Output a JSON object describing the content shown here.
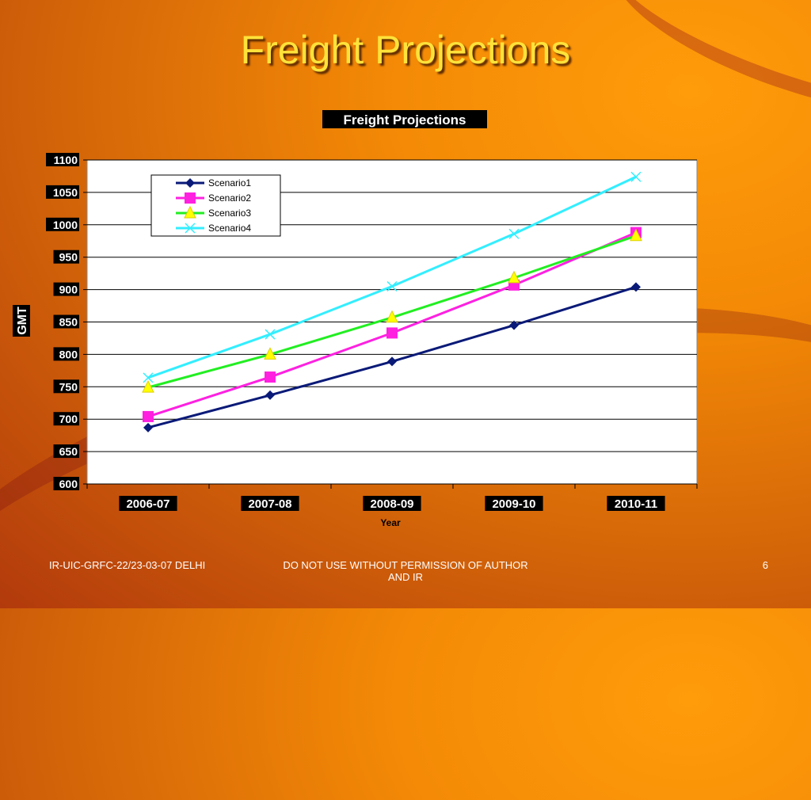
{
  "slide": {
    "title": "Freight Projections",
    "footer_left": "IR-UIC-GRFC-22/23-03-07 DELHI",
    "footer_center": "DO NOT USE WITHOUT PERMISSION OF AUTHOR AND IR",
    "page_number": "6"
  },
  "colors": {
    "title": "#ffe23a",
    "background_accent": "#f48a06"
  },
  "chart_data": {
    "type": "line",
    "title": "Freight Projections",
    "xlabel": "Year",
    "ylabel": "GMT",
    "categories": [
      "2006-07",
      "2007-08",
      "2008-09",
      "2009-10",
      "2010-11"
    ],
    "ylim": [
      600,
      1100
    ],
    "yticks": [
      600,
      650,
      700,
      750,
      800,
      850,
      900,
      950,
      1000,
      1050,
      1100
    ],
    "grid": true,
    "legend_position": "top-left",
    "series": [
      {
        "name": "Scenario1",
        "color": "#0a1a78",
        "marker": "diamond",
        "values": [
          687,
          737,
          789,
          845,
          904
        ]
      },
      {
        "name": "Scenario2",
        "color": "#ff20e0",
        "marker": "square",
        "values": [
          704,
          765,
          833,
          907,
          988
        ]
      },
      {
        "name": "Scenario3",
        "color": "#22ee22",
        "marker": "triangle",
        "values": [
          749,
          800,
          857,
          918,
          983
        ]
      },
      {
        "name": "Scenario4",
        "color": "#33eeff",
        "marker": "x",
        "values": [
          764,
          831,
          905,
          986,
          1074
        ]
      }
    ]
  }
}
